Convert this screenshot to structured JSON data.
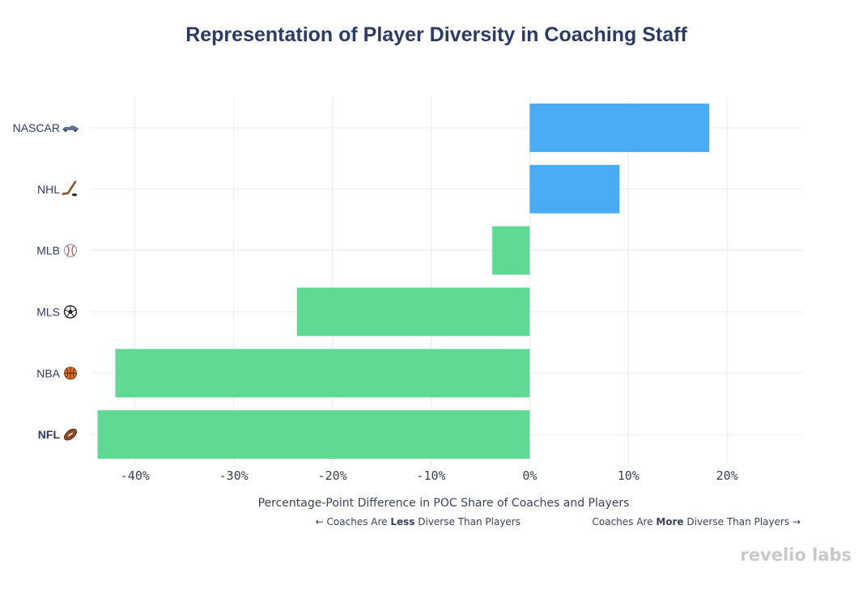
{
  "chart_data": {
    "type": "bar",
    "orientation": "horizontal",
    "title": "Representation of Player Diversity in Coaching Staff",
    "categories": [
      "NASCAR",
      "NHL",
      "MLB",
      "MLS",
      "NBA",
      "NFL"
    ],
    "category_icons": [
      "race-car-icon",
      "hockey-stick-icon",
      "baseball-icon",
      "soccer-ball-icon",
      "basketball-icon",
      "football-icon"
    ],
    "bold_categories": [
      "NFL"
    ],
    "values": [
      18.2,
      9.1,
      -3.8,
      -23.6,
      -42,
      -43.8
    ],
    "xlim": [
      -44.5,
      27.7
    ],
    "xticks": [
      -40,
      -30,
      -20,
      -10,
      0,
      10,
      20
    ],
    "xtick_labels": [
      "-40%",
      "-30%",
      "-20%",
      "-10%",
      "0%",
      "10%",
      "20%"
    ],
    "xlabel": "Percentage-Point Difference in POC Share of Coaches and Players",
    "positive_color": "#4aabf5",
    "negative_color": "#60d994",
    "grid": true,
    "notes": {
      "left": {
        "pre": "← Coaches Are ",
        "bold": "Less",
        "post": " Diverse Than Players"
      },
      "right": {
        "pre": "Coaches Are ",
        "bold": "More",
        "post": " Diverse Than Players →"
      }
    }
  },
  "branding": {
    "logo": "revelio labs"
  }
}
